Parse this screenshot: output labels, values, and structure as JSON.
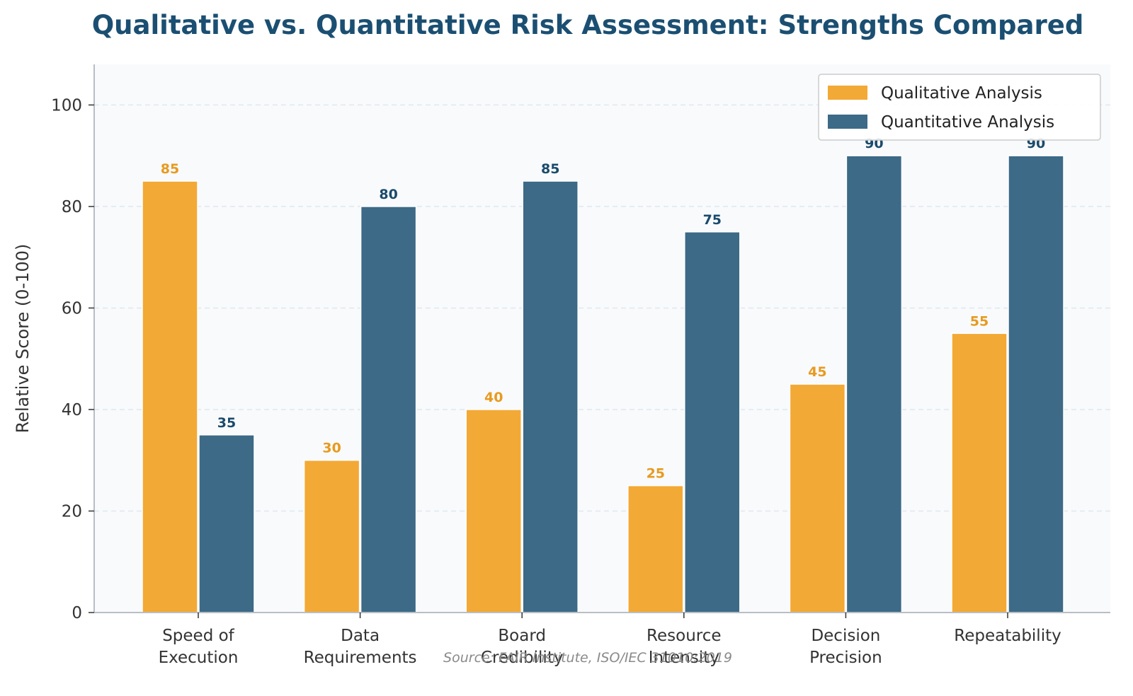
{
  "chart_data": {
    "type": "bar",
    "title": "Qualitative vs. Quantitative Risk Assessment: Strengths Compared",
    "xlabel": "",
    "ylabel": "Relative Score (0-100)",
    "categories": [
      [
        "Speed of",
        "Execution"
      ],
      [
        "Data",
        "Requirements"
      ],
      [
        "Board",
        "Credibility"
      ],
      [
        "Resource",
        "Intensity"
      ],
      [
        "Decision",
        "Precision"
      ],
      [
        "Repeatability"
      ]
    ],
    "series": [
      {
        "name": "Qualitative Analysis",
        "values": [
          85,
          30,
          40,
          25,
          45,
          55
        ],
        "color": "#F3A935",
        "label_color": "#E89A1E"
      },
      {
        "name": "Quantitative Analysis",
        "values": [
          35,
          80,
          85,
          75,
          90,
          90
        ],
        "color": "#3C6A87",
        "label_color": "#1B4A6B"
      }
    ],
    "ylim": [
      0,
      108
    ],
    "yticks": [
      0,
      20,
      40,
      60,
      80,
      100
    ],
    "grid": true,
    "legend_position": "top-right",
    "source_note": "Source: FAIR Institute, ISO/IEC 31010:2019",
    "colors": {
      "title": "#1B4F72",
      "axis_text": "#333333",
      "plot_background": "#F8FAFC",
      "grid": "#E1E7EE",
      "axis_line": "#B8BEC4",
      "source_note": "#8A8A8A"
    }
  }
}
